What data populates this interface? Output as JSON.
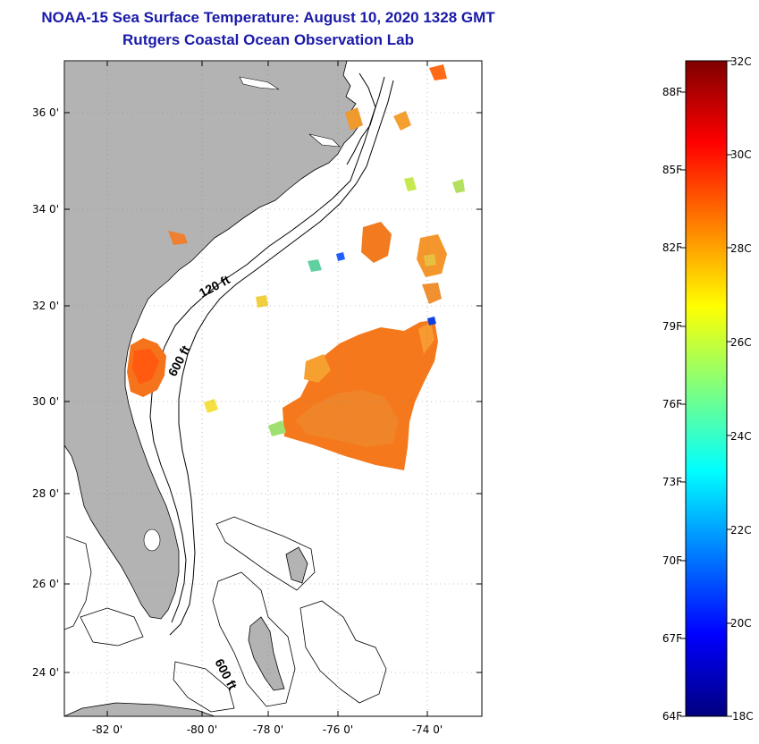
{
  "title": {
    "line1": "NOAA-15 Sea Surface Temperature:  August 10, 2020 1328 GMT",
    "line2": "Rutgers Coastal Ocean Observation Lab"
  },
  "map": {
    "lon_range": [
      -83,
      -73
    ],
    "lat_range": [
      23,
      37.2
    ],
    "lat_labels": [
      "36 0'",
      "34 0'",
      "32 0'",
      "30 0'",
      "28 0'",
      "26 0'",
      "24 0'"
    ],
    "lat_values": [
      36,
      34,
      32,
      30,
      28,
      26,
      24
    ],
    "lon_labels": [
      "-82 0'",
      "-80 0'",
      "-78 0'",
      "-76 0'",
      "-74 0'"
    ],
    "lon_values": [
      -82,
      -80,
      -78,
      -76,
      -74
    ],
    "contour_labels": [
      "120 ft",
      "600 ft",
      "600 ft"
    ],
    "land_color": "#b3b3b3",
    "ocean_color": "#ffffff"
  },
  "colorbar": {
    "celsius_labels": [
      "32C",
      "30C",
      "28C",
      "26C",
      "24C",
      "22C",
      "20C",
      "18C"
    ],
    "celsius_values": [
      32,
      30,
      28,
      26,
      24,
      22,
      20,
      18
    ],
    "fahrenheit_labels": [
      "88F",
      "85F",
      "82F",
      "79F",
      "76F",
      "73F",
      "70F",
      "67F",
      "64F"
    ],
    "fahrenheit_values": [
      88,
      85,
      82,
      79,
      76,
      73,
      70,
      67,
      64
    ],
    "range_celsius": [
      18,
      32
    ],
    "colormap": [
      "#00007f",
      "#0000ff",
      "#007fff",
      "#00ffff",
      "#7fff7f",
      "#ffff00",
      "#ff7f00",
      "#ff0000",
      "#7f0000"
    ]
  }
}
